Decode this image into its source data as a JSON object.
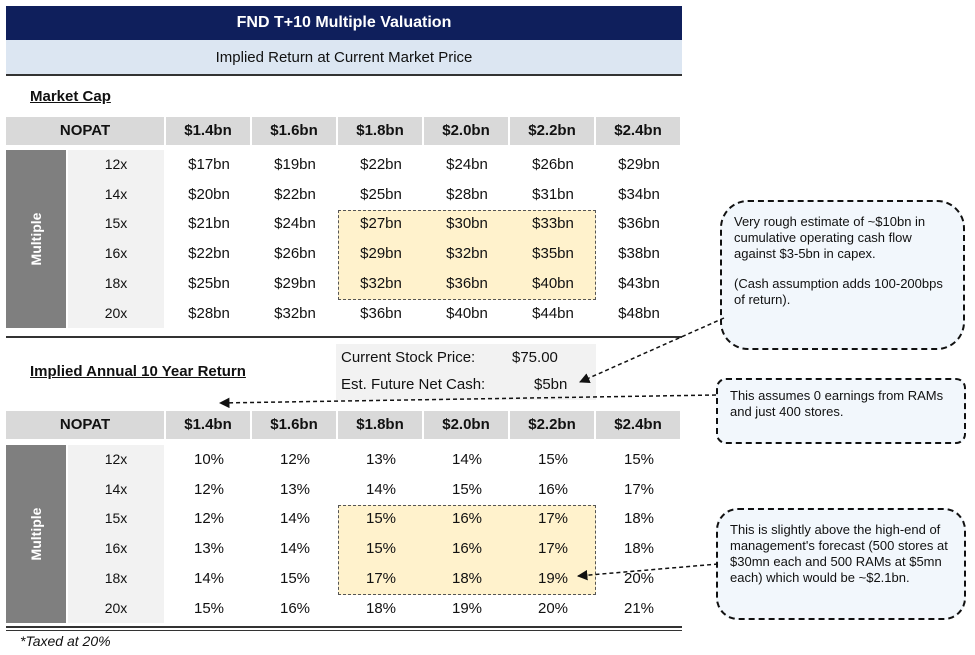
{
  "title": "FND T+10 Multiple Valuation",
  "subtitle": "Implied Return at Current Market Price",
  "market_cap": {
    "section_title": "Market Cap",
    "header_label": "NOPAT",
    "columns": [
      "$1.4bn",
      "$1.6bn",
      "$1.8bn",
      "$2.0bn",
      "$2.2bn",
      "$2.4bn"
    ],
    "side_label": "Multiple",
    "rows": [
      {
        "multiple": "12x",
        "values": [
          "$17bn",
          "$19bn",
          "$22bn",
          "$24bn",
          "$26bn",
          "$29bn"
        ]
      },
      {
        "multiple": "14x",
        "values": [
          "$20bn",
          "$22bn",
          "$25bn",
          "$28bn",
          "$31bn",
          "$34bn"
        ]
      },
      {
        "multiple": "15x",
        "values": [
          "$21bn",
          "$24bn",
          "$27bn",
          "$30bn",
          "$33bn",
          "$36bn"
        ]
      },
      {
        "multiple": "16x",
        "values": [
          "$22bn",
          "$26bn",
          "$29bn",
          "$32bn",
          "$35bn",
          "$38bn"
        ]
      },
      {
        "multiple": "18x",
        "values": [
          "$25bn",
          "$29bn",
          "$32bn",
          "$36bn",
          "$40bn",
          "$43bn"
        ]
      },
      {
        "multiple": "20x",
        "values": [
          "$28bn",
          "$32bn",
          "$36bn",
          "$40bn",
          "$44bn",
          "$48bn"
        ]
      }
    ]
  },
  "info": {
    "price_label": "Current Stock Price:",
    "price_value": "$75.00",
    "cash_label": "Est. Future Net Cash:",
    "cash_value": "$5bn"
  },
  "returns": {
    "section_title": "Implied Annual 10 Year Return",
    "header_label": "NOPAT",
    "columns": [
      "$1.4bn",
      "$1.6bn",
      "$1.8bn",
      "$2.0bn",
      "$2.2bn",
      "$2.4bn"
    ],
    "side_label": "Multiple",
    "rows": [
      {
        "multiple": "12x",
        "values": [
          "10%",
          "12%",
          "13%",
          "14%",
          "15%",
          "15%"
        ]
      },
      {
        "multiple": "14x",
        "values": [
          "12%",
          "13%",
          "14%",
          "15%",
          "16%",
          "17%"
        ]
      },
      {
        "multiple": "15x",
        "values": [
          "12%",
          "14%",
          "15%",
          "16%",
          "17%",
          "18%"
        ]
      },
      {
        "multiple": "16x",
        "values": [
          "13%",
          "14%",
          "15%",
          "16%",
          "17%",
          "18%"
        ]
      },
      {
        "multiple": "18x",
        "values": [
          "14%",
          "15%",
          "17%",
          "18%",
          "19%",
          "20%"
        ]
      },
      {
        "multiple": "20x",
        "values": [
          "15%",
          "16%",
          "18%",
          "19%",
          "20%",
          "21%"
        ]
      }
    ]
  },
  "footnote": "*Taxed at 20%",
  "callouts": {
    "cash_flow": {
      "line1": "Very rough estimate of ~$10bn in cumulative operating cash flow against $3-5bn in capex.",
      "line2": "(Cash assumption adds 100-200bps of return)."
    },
    "earnings": "This assumes 0 earnings from RAMs and just 400 stores.",
    "forecast": "This is slightly above the high-end of management's forecast (500 stores at $30mn each and 500 RAMs at $5mn each) which would be ~$2.1bn."
  }
}
